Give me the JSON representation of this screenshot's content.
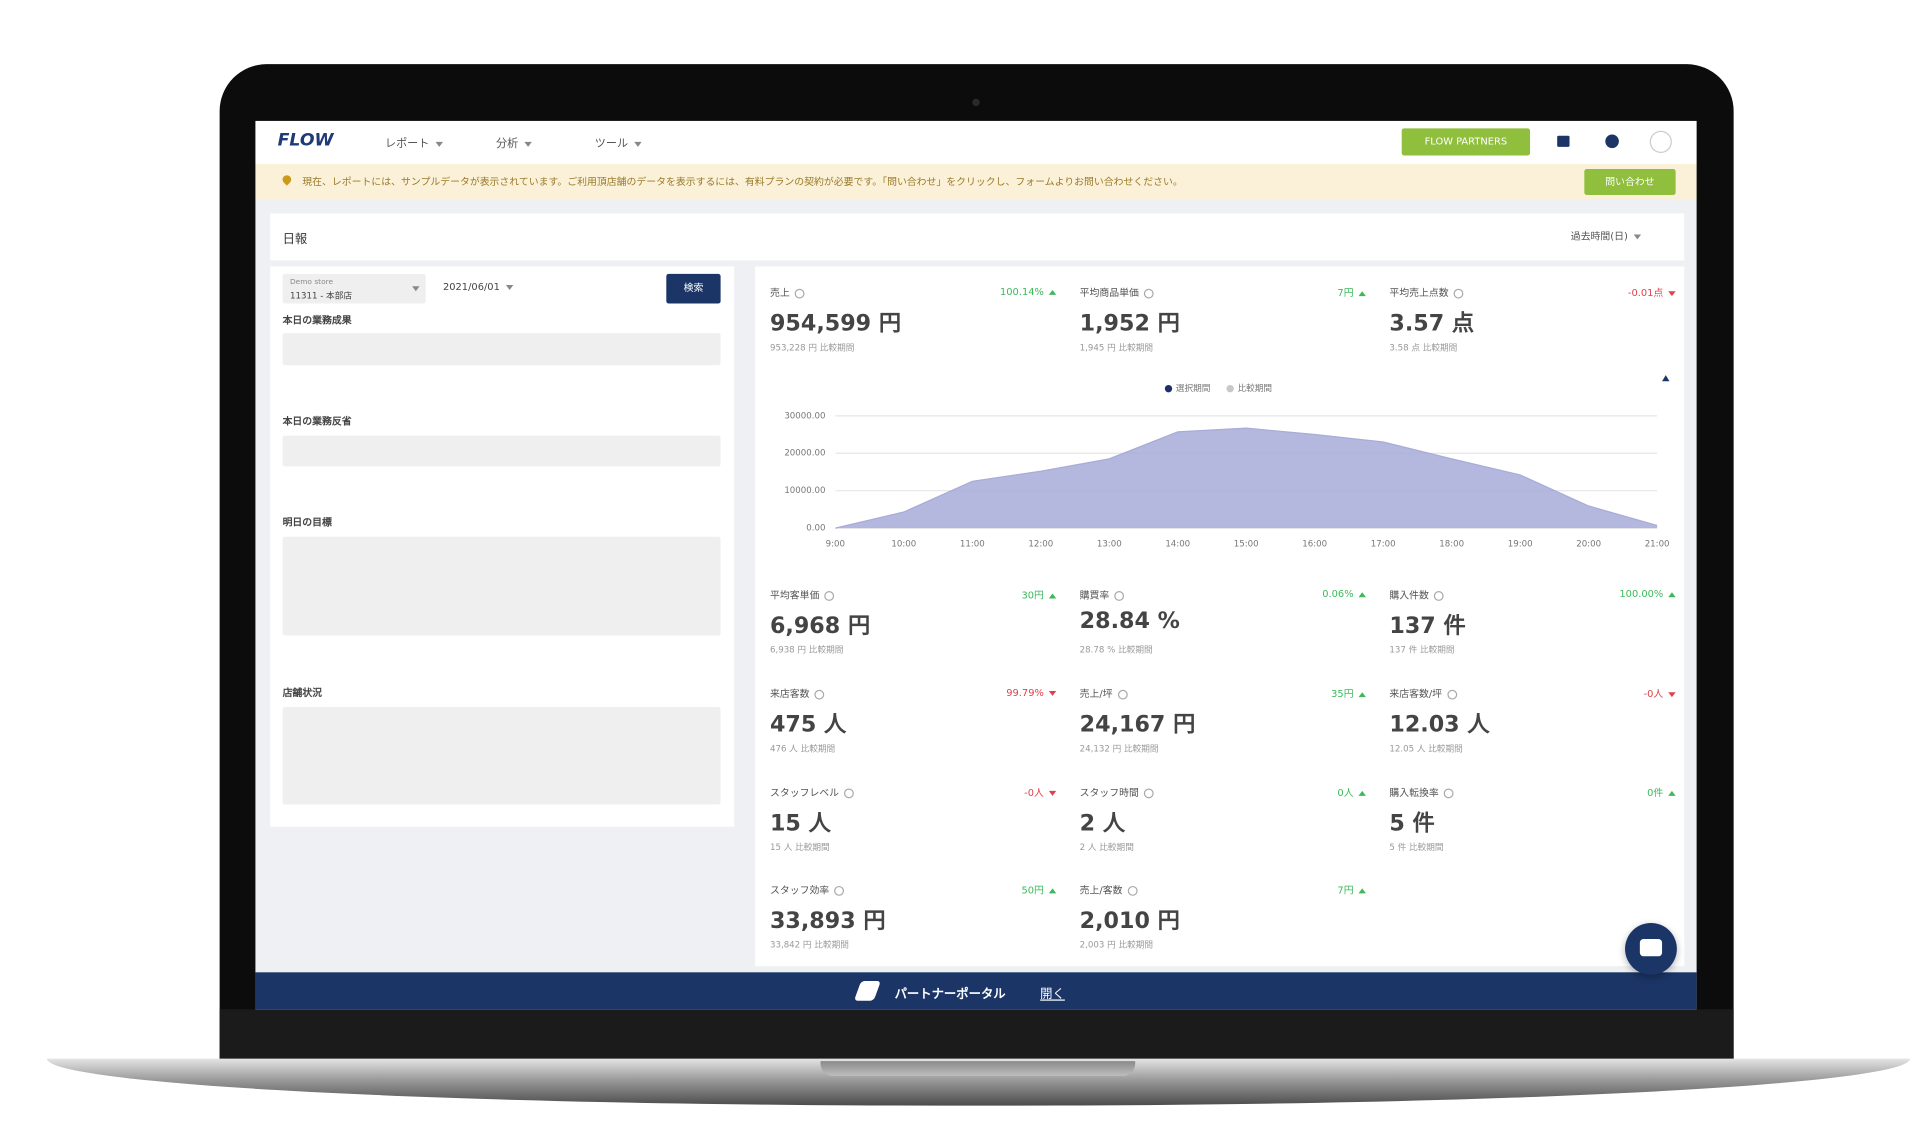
{
  "nav": {
    "logo": "FLOW",
    "menu": [
      "レポート",
      "分析",
      "ツール"
    ],
    "partners_button": "FLOW PARTNERS"
  },
  "notice": {
    "text": "現在、レポートには、サンプルデータが表示されています。ご利用頂店舗のデータを表示するには、有料プランの契約が必要です。「問い合わせ」をクリックし、フォームよりお問い合わせください。",
    "button": "問い合わせ"
  },
  "page": {
    "title": "日報",
    "period_select": "過去時間(日)"
  },
  "filters": {
    "store_label": "Demo store",
    "store": "11311 - 本部店",
    "date": "2021/06/01",
    "search_button": "検索"
  },
  "fields": [
    "本日の業務成果",
    "本日の業務反省",
    "明日の目標",
    "店舗状況"
  ],
  "kpis": [
    {
      "label": "売上",
      "change": "100.14%",
      "direction": "up",
      "value": "954,599 円",
      "compare": "953,228 円 比較期間"
    },
    {
      "label": "平均商品単価",
      "change": "7円",
      "direction": "up",
      "value": "1,952 円",
      "compare": "1,945 円 比較期間"
    },
    {
      "label": "平均売上点数",
      "change": "-0.01点",
      "direction": "down",
      "value": "3.57 点",
      "compare": "3.58 点 比較期間"
    },
    {
      "label": "平均客単価",
      "change": "30円",
      "direction": "up",
      "value": "6,968 円",
      "compare": "6,938 円 比較期間"
    },
    {
      "label": "購買率",
      "change": "0.06%",
      "direction": "up",
      "value": "28.84 %",
      "compare": "28.78 % 比較期間"
    },
    {
      "label": "購入件数",
      "change": "100.00%",
      "direction": "up",
      "value": "137 件",
      "compare": "137 件 比較期間"
    },
    {
      "label": "来店客数",
      "change": "99.79%",
      "direction": "down",
      "value": "475 人",
      "compare": "476 人 比較期間"
    },
    {
      "label": "売上/坪",
      "change": "35円",
      "direction": "up",
      "value": "24,167 円",
      "compare": "24,132 円 比較期間"
    },
    {
      "label": "来店客数/坪",
      "change": "-0人",
      "direction": "down",
      "value": "12.03 人",
      "compare": "12.05 人 比較期間"
    },
    {
      "label": "スタッフレベル",
      "change": "-0人",
      "direction": "down",
      "value": "15 人",
      "compare": "15 人 比較期間"
    },
    {
      "label": "スタッフ時間",
      "change": "0人",
      "direction": "up",
      "value": "2 人",
      "compare": "2 人 比較期間"
    },
    {
      "label": "購入転換率",
      "change": "0件",
      "direction": "up",
      "value": "5 件",
      "compare": "5 件 比較期間"
    },
    {
      "label": "スタッフ効率",
      "change": "50円",
      "direction": "up",
      "value": "33,893 円",
      "compare": "33,842 円 比較期間"
    },
    {
      "label": "売上/客数",
      "change": "7円",
      "direction": "up",
      "value": "2,010 円",
      "compare": "2,003 円 比較期間"
    }
  ],
  "chart_data": {
    "type": "area",
    "legend": "top",
    "x": [
      "9:00",
      "10:00",
      "11:00",
      "12:00",
      "13:00",
      "14:00",
      "15:00",
      "16:00",
      "17:00",
      "18:00",
      "19:00",
      "20:00",
      "21:00"
    ],
    "series": [
      {
        "name": "選択期間",
        "color": "#1e2f6b",
        "fill": "#a7acd8",
        "values": [
          0,
          4300,
          12500,
          15200,
          18500,
          25700,
          26700,
          25000,
          23000,
          18500,
          14200,
          5900,
          700
        ]
      },
      {
        "name": "比較期間",
        "color": "#c8c8c8",
        "values": [
          null,
          null,
          null,
          null,
          null,
          null,
          null,
          null,
          null,
          null,
          null,
          null,
          null
        ]
      }
    ],
    "ylim": [
      0,
      30000
    ],
    "yticks": [
      {
        "value": 0,
        "label": "0.00"
      },
      {
        "value": 10000,
        "label": "10000.00"
      },
      {
        "value": 20000,
        "label": "20000.00"
      },
      {
        "value": 30000,
        "label": "30000.00"
      }
    ],
    "grid": true
  },
  "footer": {
    "text": "パートナーポータル",
    "link": "開く"
  }
}
